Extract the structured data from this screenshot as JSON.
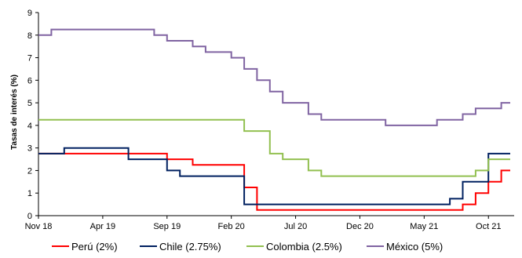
{
  "chart_data": {
    "type": "line",
    "ylabel": "Tasas de interés (%)",
    "xlabel": "",
    "title": "",
    "ylim": [
      0,
      9
    ],
    "yticks": [
      0,
      1,
      2,
      3,
      4,
      5,
      6,
      7,
      8,
      9
    ],
    "xlim": [
      "2018-11",
      "2021-12"
    ],
    "xticks": [
      {
        "label": "Nov 18",
        "date": "2018-11"
      },
      {
        "label": "Apr 19",
        "date": "2019-04"
      },
      {
        "label": "Sep 19",
        "date": "2019-09"
      },
      {
        "label": "Feb 20",
        "date": "2020-02"
      },
      {
        "label": "Jul 20",
        "date": "2020-07"
      },
      {
        "label": "Dec 20",
        "date": "2020-12"
      },
      {
        "label": "May 21",
        "date": "2021-05"
      },
      {
        "label": "Oct 21",
        "date": "2021-10"
      }
    ],
    "grid": false,
    "legend_position": "bottom",
    "step": true,
    "series": [
      {
        "name": "Perú (2%)",
        "color": "#ff0000",
        "points": [
          [
            "2018-11",
            2.75
          ],
          [
            "2019-09",
            2.5
          ],
          [
            "2019-11",
            2.25
          ],
          [
            "2020-03",
            1.25
          ],
          [
            "2020-04",
            0.25
          ],
          [
            "2021-08",
            0.5
          ],
          [
            "2021-09",
            1.0
          ],
          [
            "2021-10",
            1.5
          ],
          [
            "2021-11",
            2.0
          ]
        ]
      },
      {
        "name": "Chile (2.75%)",
        "color": "#002060",
        "points": [
          [
            "2018-11",
            2.75
          ],
          [
            "2019-01",
            3.0
          ],
          [
            "2019-06",
            2.5
          ],
          [
            "2019-09",
            2.0
          ],
          [
            "2019-10",
            1.75
          ],
          [
            "2020-03",
            0.5
          ],
          [
            "2021-07",
            0.75
          ],
          [
            "2021-08",
            1.5
          ],
          [
            "2021-10",
            2.75
          ]
        ]
      },
      {
        "name": "Colombia (2.5%)",
        "color": "#92c050",
        "points": [
          [
            "2018-11",
            4.25
          ],
          [
            "2020-03",
            3.75
          ],
          [
            "2020-05",
            2.75
          ],
          [
            "2020-06",
            2.5
          ],
          [
            "2020-08",
            2.0
          ],
          [
            "2020-09",
            1.75
          ],
          [
            "2021-09",
            2.0
          ],
          [
            "2021-10",
            2.5
          ]
        ]
      },
      {
        "name": "México (5%)",
        "color": "#8064a2",
        "points": [
          [
            "2018-11",
            8.0
          ],
          [
            "2018-12",
            8.25
          ],
          [
            "2019-08",
            8.0
          ],
          [
            "2019-09",
            7.75
          ],
          [
            "2019-11",
            7.5
          ],
          [
            "2019-12",
            7.25
          ],
          [
            "2020-02",
            7.0
          ],
          [
            "2020-03",
            6.5
          ],
          [
            "2020-04",
            6.0
          ],
          [
            "2020-05",
            5.5
          ],
          [
            "2020-06",
            5.0
          ],
          [
            "2020-08",
            4.5
          ],
          [
            "2020-09",
            4.25
          ],
          [
            "2021-02",
            4.0
          ],
          [
            "2021-06",
            4.25
          ],
          [
            "2021-08",
            4.5
          ],
          [
            "2021-09",
            4.75
          ],
          [
            "2021-11",
            5.0
          ]
        ]
      }
    ]
  }
}
